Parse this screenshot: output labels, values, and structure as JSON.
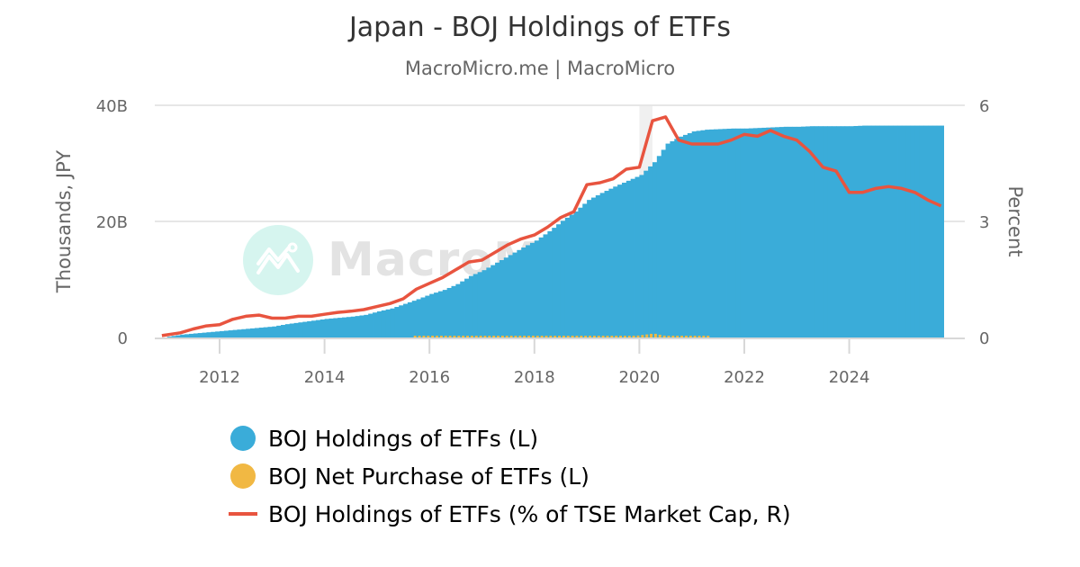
{
  "header": {
    "title": "Japan - BOJ Holdings of ETFs",
    "subtitle": "MacroMicro.me | MacroMicro"
  },
  "watermark": {
    "text": "MacroMicro",
    "icon": "chart-logo-icon"
  },
  "axes": {
    "left": {
      "title": "Thousands, JPY",
      "ticks": [
        "0",
        "20B",
        "40B"
      ]
    },
    "right": {
      "title": "Percent",
      "ticks": [
        "0",
        "3",
        "6"
      ]
    },
    "x": {
      "ticks": [
        "2012",
        "2014",
        "2016",
        "2018",
        "2020",
        "2022",
        "2024"
      ]
    }
  },
  "legend": {
    "items": [
      {
        "label": "BOJ Holdings of ETFs (L)",
        "color": "#3aacd9",
        "shape": "dot"
      },
      {
        "label": "BOJ Net Purchase of ETFs (L)",
        "color": "#f1b843",
        "shape": "dot"
      },
      {
        "label": "BOJ Holdings of ETFs (% of TSE Market Cap, R)",
        "color": "#e8543f",
        "shape": "line"
      }
    ]
  },
  "colors": {
    "holdings": "#3aacd9",
    "net_purchase": "#f1b843",
    "pct_line": "#e8543f",
    "grid": "#e6e6e6",
    "recession_band": "#f0f0f0"
  },
  "chart_data": {
    "type": "bar+line",
    "title": "Japan - BOJ Holdings of ETFs",
    "subtitle": "MacroMicro.me | MacroMicro",
    "xlabel": "",
    "ylabel": "Thousands, JPY",
    "ylabel_right": "Percent",
    "ylim": [
      0,
      40000000000
    ],
    "ylim_right": [
      0,
      6
    ],
    "grid": true,
    "legend_position": "bottom",
    "shaded_band": {
      "from": 2020.0,
      "to": 2020.25
    },
    "x": [
      2010.9,
      2011.25,
      2011.5,
      2011.75,
      2012.0,
      2012.25,
      2012.5,
      2012.75,
      2013.0,
      2013.25,
      2013.5,
      2013.75,
      2014.0,
      2014.25,
      2014.5,
      2014.75,
      2015.0,
      2015.25,
      2015.5,
      2015.75,
      2016.0,
      2016.25,
      2016.5,
      2016.75,
      2017.0,
      2017.25,
      2017.5,
      2017.75,
      2018.0,
      2018.25,
      2018.5,
      2018.75,
      2019.0,
      2019.25,
      2019.5,
      2019.75,
      2020.0,
      2020.25,
      2020.5,
      2020.75,
      2021.0,
      2021.25,
      2021.5,
      2021.75,
      2022.0,
      2022.25,
      2022.5,
      2022.75,
      2023.0,
      2023.25,
      2023.5,
      2023.75,
      2024.0,
      2024.25,
      2024.5,
      2024.75,
      2025.0,
      2025.25,
      2025.5,
      2025.75
    ],
    "series": [
      {
        "name": "BOJ Holdings of ETFs (L)",
        "axis": "left",
        "type": "bar",
        "values_billion": [
          0.0,
          0.5,
          0.7,
          0.9,
          1.1,
          1.3,
          1.5,
          1.7,
          1.9,
          2.3,
          2.6,
          2.9,
          3.2,
          3.4,
          3.6,
          3.9,
          4.5,
          5.0,
          5.8,
          6.6,
          7.5,
          8.2,
          9.2,
          10.6,
          11.6,
          12.9,
          14.2,
          15.5,
          16.7,
          18.3,
          20.1,
          21.7,
          23.7,
          24.9,
          26.0,
          27.0,
          28.0,
          30.2,
          33.4,
          34.6,
          35.5,
          35.8,
          35.9,
          36.0,
          36.0,
          36.1,
          36.2,
          36.3,
          36.3,
          36.4,
          36.4,
          36.4,
          36.4,
          36.5,
          36.5,
          36.5,
          36.5,
          36.5,
          36.5,
          36.5
        ]
      },
      {
        "name": "BOJ Net Purchase of ETFs (L)",
        "axis": "left",
        "type": "bar",
        "values_billion": [
          0.0,
          0.0,
          0.0,
          0.0,
          0.0,
          0.0,
          0.0,
          0.0,
          0.0,
          0.0,
          0.0,
          0.0,
          0.0,
          0.0,
          0.0,
          0.0,
          0.0,
          0.0,
          0.0,
          0.1,
          0.2,
          0.1,
          0.2,
          0.1,
          0.3,
          0.2,
          0.3,
          0.2,
          0.3,
          0.2,
          0.3,
          0.2,
          0.3,
          0.2,
          0.3,
          0.2,
          0.5,
          0.9,
          0.3,
          0.2,
          0.1,
          0.1,
          0.0,
          0.0,
          0.0,
          0.0,
          0.0,
          0.0,
          0.0,
          0.0,
          0.0,
          0.0,
          0.0,
          0.0,
          0.0,
          0.0,
          0.0,
          0.0,
          0.0,
          0.0
        ]
      },
      {
        "name": "BOJ Holdings of ETFs (% of TSE Market Cap, R)",
        "axis": "right",
        "type": "line",
        "values": [
          0.05,
          0.12,
          0.22,
          0.3,
          0.33,
          0.47,
          0.55,
          0.58,
          0.5,
          0.5,
          0.55,
          0.55,
          0.6,
          0.65,
          0.68,
          0.72,
          0.8,
          0.88,
          1.0,
          1.25,
          1.4,
          1.55,
          1.75,
          1.95,
          2.0,
          2.2,
          2.4,
          2.55,
          2.65,
          2.85,
          3.1,
          3.25,
          3.95,
          4.0,
          4.1,
          4.35,
          4.4,
          5.6,
          5.7,
          5.1,
          5.0,
          5.0,
          5.0,
          5.1,
          5.25,
          5.2,
          5.35,
          5.2,
          5.1,
          4.8,
          4.4,
          4.3,
          3.75,
          3.75,
          3.85,
          3.9,
          3.85,
          3.75,
          3.55,
          3.4
        ]
      }
    ]
  }
}
